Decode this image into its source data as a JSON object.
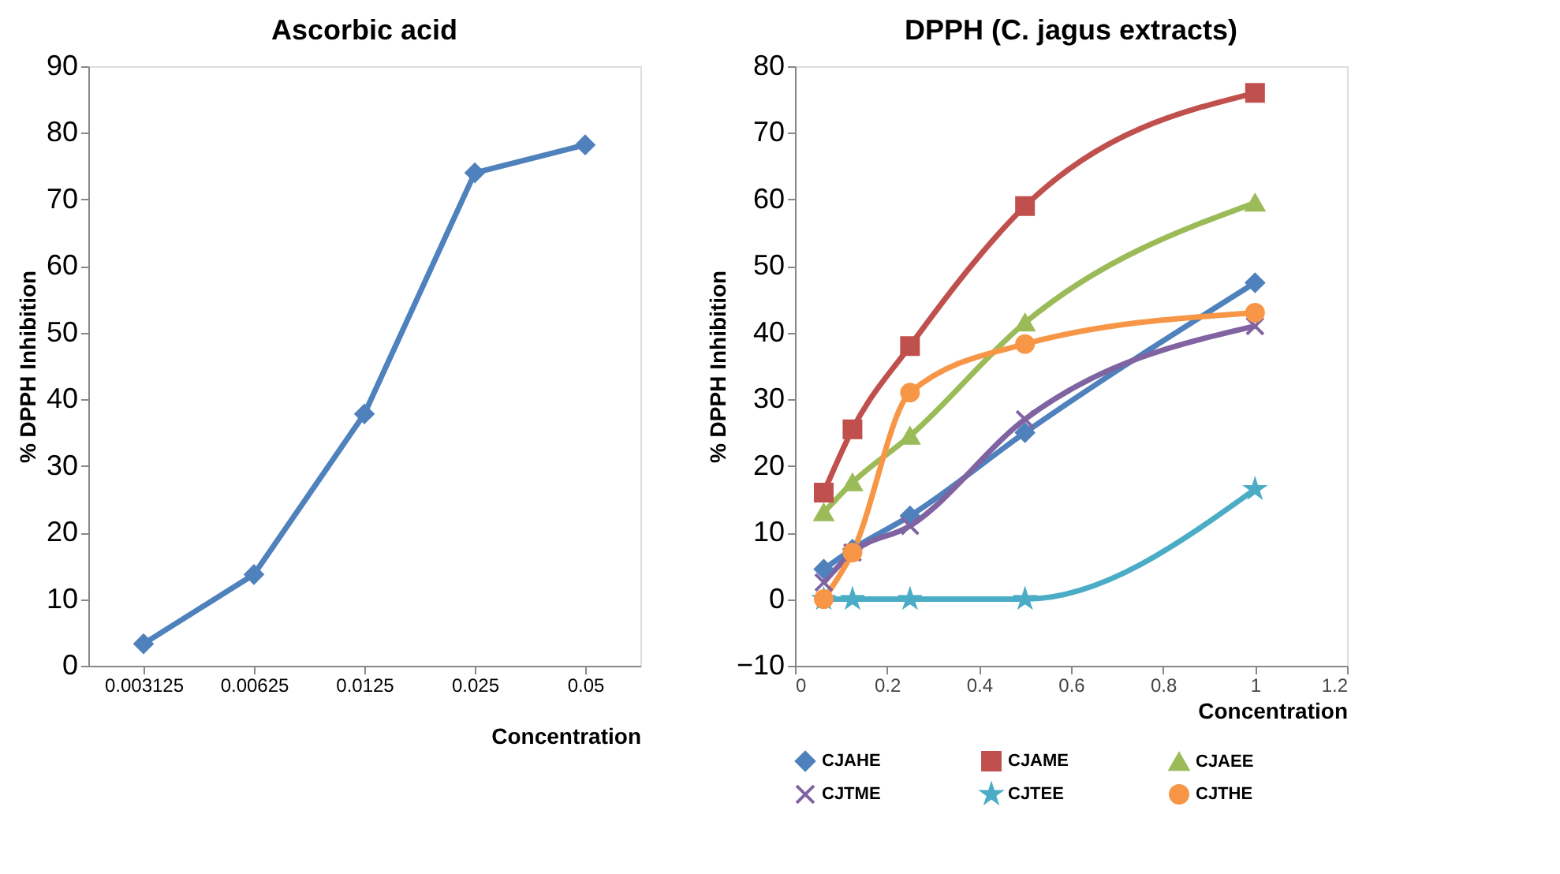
{
  "chart_data": [
    {
      "type": "line",
      "title": "Ascorbic acid",
      "xlabel": "Concentration",
      "ylabel": "% DPPH Inhibition",
      "categories": [
        "0.003125",
        "0.00625",
        "0.0125",
        "0.025",
        "0.05"
      ],
      "ylim": [
        0,
        90
      ],
      "yticks": [
        0,
        10,
        20,
        30,
        40,
        50,
        60,
        70,
        80,
        90
      ],
      "grid": false,
      "legend": false,
      "series": [
        {
          "color": "#4f81bd",
          "marker": "diamond",
          "values": [
            3.3,
            13.7,
            37.8,
            74.0,
            78.2
          ]
        }
      ]
    },
    {
      "type": "line",
      "title": "DPPH (C. jagus extracts)",
      "xlabel": "Concentration",
      "ylabel": "% DPPH Inhibition",
      "x": [
        0.0625,
        0.125,
        0.25,
        0.5,
        1
      ],
      "xlim": [
        0,
        1.2
      ],
      "xticks": [
        0,
        0.2,
        0.4,
        0.6,
        0.8,
        1,
        1.2
      ],
      "ylim": [
        -10,
        80
      ],
      "yticks": [
        -10,
        0,
        10,
        20,
        30,
        40,
        50,
        60,
        70,
        80
      ],
      "grid": false,
      "legend": "bottom",
      "series": [
        {
          "name": "CJAHE",
          "color": "#4f81bd",
          "marker": "diamond",
          "values": [
            4.5,
            7.5,
            12.5,
            25,
            47.5
          ]
        },
        {
          "name": "CJAME",
          "color": "#c0504d",
          "marker": "square",
          "values": [
            16,
            25.5,
            38,
            59,
            76
          ]
        },
        {
          "name": "CJAEE",
          "color": "#9bbb59",
          "marker": "triangle",
          "values": [
            13,
            17.5,
            24.5,
            41.5,
            59.5
          ]
        },
        {
          "name": "CJTME",
          "color": "#8064a2",
          "marker": "cross",
          "values": [
            2.5,
            7,
            11,
            27,
            41
          ]
        },
        {
          "name": "CJTEE",
          "color": "#4bacc6",
          "marker": "star",
          "values": [
            0,
            0,
            0,
            0,
            16.5
          ]
        },
        {
          "name": "CJTHE",
          "color": "#f79646",
          "marker": "circle",
          "values": [
            0,
            7,
            31,
            38.3,
            43
          ]
        }
      ]
    }
  ]
}
